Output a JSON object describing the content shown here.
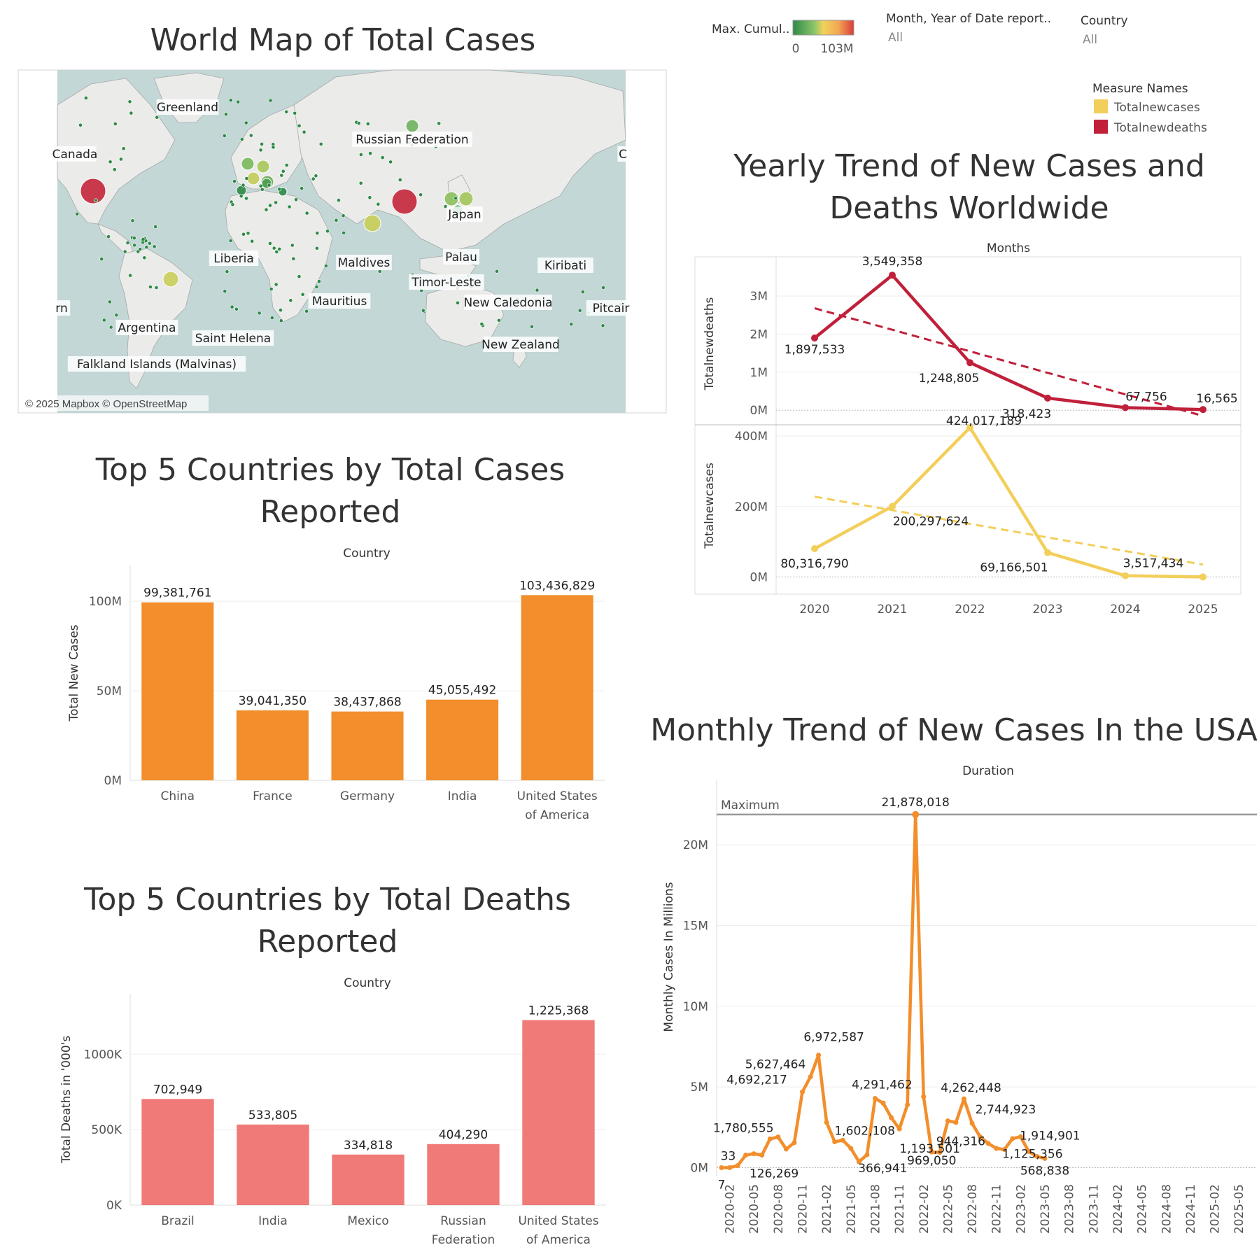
{
  "map": {
    "title": "World Map of Total Cases",
    "credit": "© 2025 Mapbox © OpenStreetMap",
    "place_labels": [
      "Greenland",
      "Canada",
      "Russian Federation",
      "C",
      "Japan",
      "Liberia",
      "Maldives",
      "Palau",
      "Kiribati",
      "Timor-Leste",
      "New Caledonia",
      "Mauritius",
      "rn",
      "Argentina",
      "Saint Helena",
      "New Zealand",
      "Falkland Islands (Malvinas)",
      "Pitcair"
    ],
    "colors": {
      "water": "#c2d7d6",
      "land": "#ebebea",
      "border": "#9a9a9a",
      "bubble_low": "#2d8a47",
      "bubble_mid": "#c9cf59",
      "bubble_high": "#c4263a"
    }
  },
  "filters": {
    "color_legend_label": "Max. Cumul..",
    "color_legend_min": "0",
    "color_legend_max": "103M",
    "date_label": "Month, Year of Date report..",
    "date_value": "All",
    "country_label": "Country",
    "country_value": "All"
  },
  "measure_legend": {
    "title": "Measure Names",
    "items": [
      {
        "name": "Totalnewcases",
        "color": "#f2cf5b"
      },
      {
        "name": "Totalnewdeaths",
        "color": "#c0203a"
      }
    ]
  },
  "chart_data": [
    {
      "id": "top5_cases",
      "type": "bar",
      "title": "Top 5 Countries by Total Cases Reported",
      "header": "Country",
      "xlabel": "",
      "ylabel": "Total New Cases",
      "categories": [
        "China",
        "France",
        "Germany",
        "India",
        "United States of America"
      ],
      "values": [
        99381761,
        39041350,
        38437868,
        45055492,
        103436829
      ],
      "value_labels": [
        "99,381,761",
        "39,041,350",
        "38,437,868",
        "45,055,492",
        "103,436,829"
      ],
      "ylim": [
        0,
        120000000
      ],
      "yticks": [
        0,
        50000000,
        100000000
      ],
      "ytick_labels": [
        "0M",
        "50M",
        "100M"
      ],
      "color": "#f28e2b",
      "grid": true
    },
    {
      "id": "top5_deaths",
      "type": "bar",
      "title": "Top 5 Countries by Total Deaths Reported",
      "header": "Country",
      "xlabel": "",
      "ylabel": "Total Deaths in '000's",
      "categories": [
        "Brazil",
        "India",
        "Mexico",
        "Russian Federation",
        "United States of America"
      ],
      "values": [
        702949,
        533805,
        334818,
        404290,
        1225368
      ],
      "value_labels": [
        "702,949",
        "533,805",
        "334,818",
        "404,290",
        "1,225,368"
      ],
      "ylim": [
        0,
        1400000
      ],
      "yticks": [
        0,
        500000,
        1000000
      ],
      "ytick_labels": [
        "0K",
        "500K",
        "1000K"
      ],
      "color": "#f07a78",
      "grid": true
    },
    {
      "id": "yearly_trend",
      "type": "line",
      "title": "Yearly Trend of New Cases and Deaths Worldwide",
      "header": "Months",
      "x": [
        2020,
        2021,
        2022,
        2023,
        2024,
        2025
      ],
      "x_labels": [
        "2020",
        "2021",
        "2022",
        "2023",
        "2024",
        "2025"
      ],
      "panels": [
        {
          "ylabel": "Totalnewdeaths",
          "series": [
            {
              "name": "Totalnewdeaths",
              "values": [
                1897533,
                3549358,
                1248805,
                318423,
                67756,
                16565
              ],
              "value_labels": [
                "1,897,533",
                "3,549,358",
                "1,248,805",
                "318,423",
                "67,756",
                "16,565"
              ],
              "color": "#c0203a"
            }
          ],
          "trend": [
            2680000,
            -150000
          ],
          "ylim": [
            -200000,
            3700000
          ],
          "yticks": [
            0,
            1000000,
            2000000,
            3000000
          ],
          "ytick_labels": [
            "0M",
            "1M",
            "2M",
            "3M"
          ]
        },
        {
          "ylabel": "Totalnewcases",
          "series": [
            {
              "name": "Totalnewcases",
              "values": [
                80316790,
                200297624,
                424017189,
                69166501,
                3517434,
                0
              ],
              "value_labels": [
                "80,316,790",
                "200,297,624",
                "424,017,189",
                "69,166,501",
                "3,517,434",
                ""
              ],
              "color": "#f2cf5b"
            }
          ],
          "trend": [
            228000000,
            35000000
          ],
          "ylim": [
            -25000000,
            430000000
          ],
          "yticks": [
            0,
            200000000,
            400000000
          ],
          "ytick_labels": [
            "0M",
            "200M",
            "400M"
          ]
        }
      ],
      "grid": true
    },
    {
      "id": "usa_monthly",
      "type": "line",
      "title": "Monthly Trend of New Cases In the USA",
      "header": "Duration",
      "xlabel": "",
      "ylabel": "Monthly Cases In Millions",
      "x_labels": [
        "2020-02",
        "2020-05",
        "2020-08",
        "2020-11",
        "2021-02",
        "2021-05",
        "2021-08",
        "2021-11",
        "2022-02",
        "2022-05",
        "2022-08",
        "2022-11",
        "2023-02",
        "2023-05",
        "2023-08",
        "2023-11",
        "2024-02",
        "2024-05",
        "2024-08",
        "2024-11",
        "2025-02",
        "2025-05"
      ],
      "x": [
        "2020-01",
        "2020-02",
        "2020-03",
        "2020-04",
        "2020-05",
        "2020-06",
        "2020-07",
        "2020-08",
        "2020-09",
        "2020-10",
        "2020-11",
        "2020-12",
        "2021-01",
        "2021-02",
        "2021-03",
        "2021-04",
        "2021-05",
        "2021-06",
        "2021-07",
        "2021-08",
        "2021-09",
        "2021-10",
        "2021-11",
        "2021-12",
        "2022-01",
        "2022-02",
        "2022-03",
        "2022-04",
        "2022-05",
        "2022-06",
        "2022-07",
        "2022-08",
        "2022-09",
        "2022-10",
        "2022-11",
        "2022-12",
        "2023-01",
        "2023-02",
        "2023-03",
        "2023-04",
        "2023-05"
      ],
      "values": [
        7,
        33,
        126269,
        780000,
        860000,
        780000,
        1780555,
        1900000,
        1150000,
        1550000,
        4692217,
        5627464,
        6972587,
        2800000,
        1602108,
        1700000,
        1200000,
        366941,
        800000,
        4291462,
        4000000,
        3100000,
        2400000,
        3900000,
        21878018,
        4400000,
        969050,
        944316,
        2900000,
        2800000,
        4262448,
        2744923,
        1900000,
        1500000,
        1193501,
        1125356,
        1800000,
        1914901,
        1000000,
        700000,
        568838
      ],
      "labels": [
        {
          "i": 0,
          "text": "7"
        },
        {
          "i": 1,
          "text": "33"
        },
        {
          "i": 2,
          "text": "126,269"
        },
        {
          "i": 6,
          "text": "1,780,555"
        },
        {
          "i": 10,
          "text": "4,692,217"
        },
        {
          "i": 11,
          "text": "5,627,464"
        },
        {
          "i": 12,
          "text": "6,972,587"
        },
        {
          "i": 14,
          "text": "1,602,108"
        },
        {
          "i": 17,
          "text": "366,941"
        },
        {
          "i": 19,
          "text": "4,291,462"
        },
        {
          "i": 24,
          "text": "21,878,018"
        },
        {
          "i": 26,
          "text": "969,050"
        },
        {
          "i": 27,
          "text": "944,316"
        },
        {
          "i": 30,
          "text": "4,262,448"
        },
        {
          "i": 31,
          "text": "2,744,923"
        },
        {
          "i": 34,
          "text": "1,193,501"
        },
        {
          "i": 35,
          "text": "1,125,356"
        },
        {
          "i": 37,
          "text": "1,914,901"
        },
        {
          "i": 40,
          "text": "568,838"
        }
      ],
      "reference_line": {
        "label": "Maximum",
        "value": 21878018
      },
      "ylim": [
        -500000,
        24000000
      ],
      "yticks": [
        0,
        5000000,
        10000000,
        15000000,
        20000000
      ],
      "ytick_labels": [
        "0M",
        "5M",
        "10M",
        "15M",
        "20M"
      ],
      "color": "#f28e2b",
      "grid": true
    }
  ]
}
